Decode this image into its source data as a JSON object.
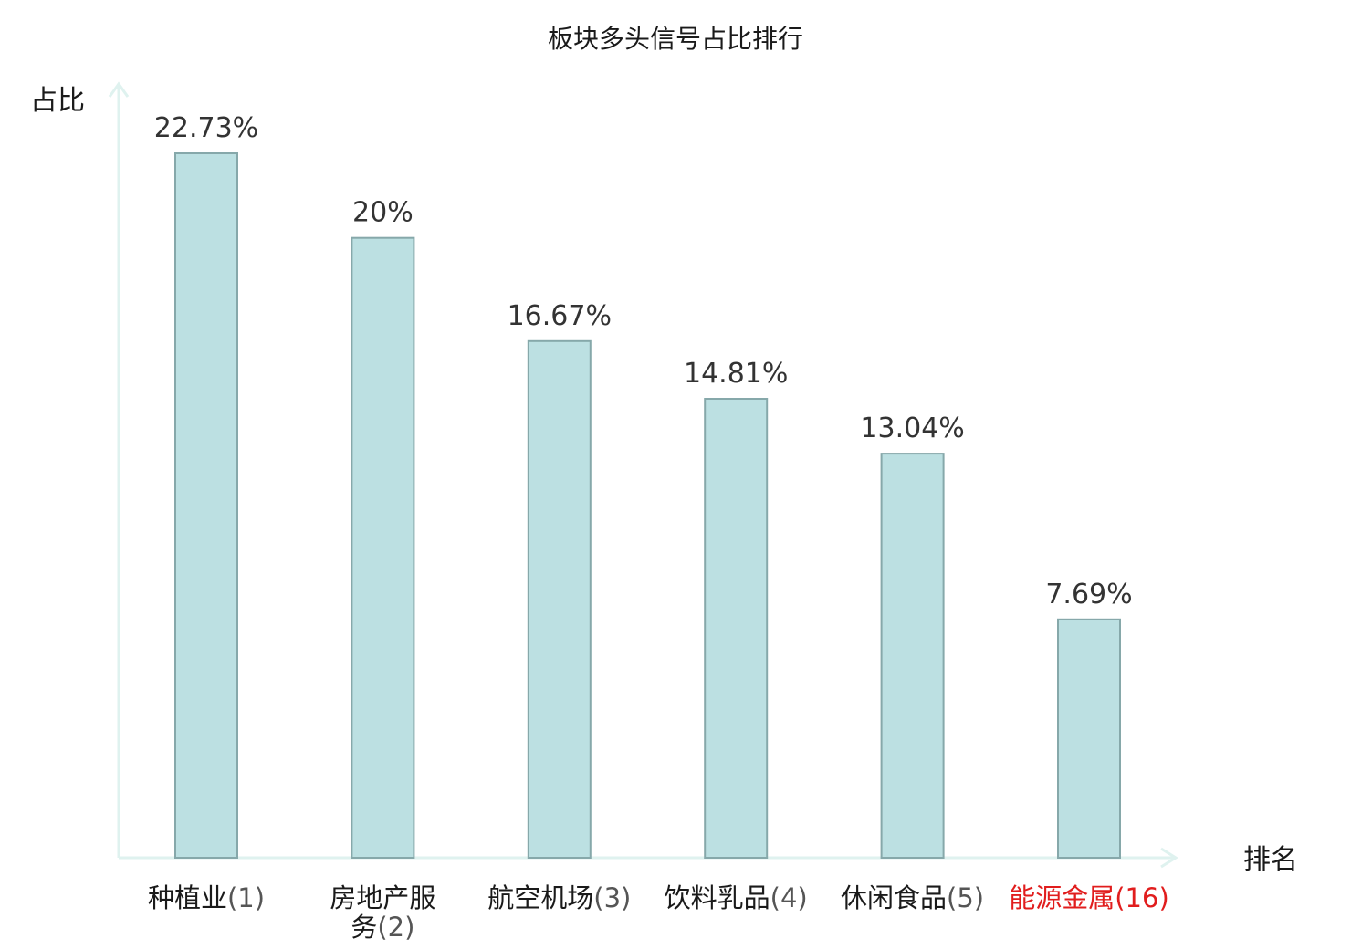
{
  "chart_data": {
    "type": "bar",
    "title": "板块多头信号占比排行",
    "xlabel": "排名",
    "ylabel": "占比",
    "ylim": [
      0,
      25
    ],
    "grid": false,
    "categories": [
      {
        "name_lines": [
          "种植业"
        ],
        "rank": "(1)",
        "highlight": false
      },
      {
        "name_lines": [
          "房地产服",
          "务"
        ],
        "rank": "(2)",
        "highlight": false
      },
      {
        "name_lines": [
          "航空机场"
        ],
        "rank": "(3)",
        "highlight": false
      },
      {
        "name_lines": [
          "饮料乳品"
        ],
        "rank": "(4)",
        "highlight": false
      },
      {
        "name_lines": [
          "休闲食品"
        ],
        "rank": "(5)",
        "highlight": false
      },
      {
        "name_lines": [
          "能源金属"
        ],
        "rank": "(16)",
        "highlight": true
      }
    ],
    "values": [
      22.73,
      20,
      16.67,
      14.81,
      13.04,
      7.69
    ],
    "value_labels": [
      "22.73%",
      "20%",
      "16.67%",
      "14.81%",
      "13.04%",
      "7.69%"
    ],
    "colors": {
      "bar_fill": "#bce0e2",
      "bar_stroke": "#86a8aa",
      "axis": "#dff2ef",
      "highlight_text": "#e11d1d",
      "rank_text": "#555555",
      "name_text": "#1a1a1a"
    }
  }
}
